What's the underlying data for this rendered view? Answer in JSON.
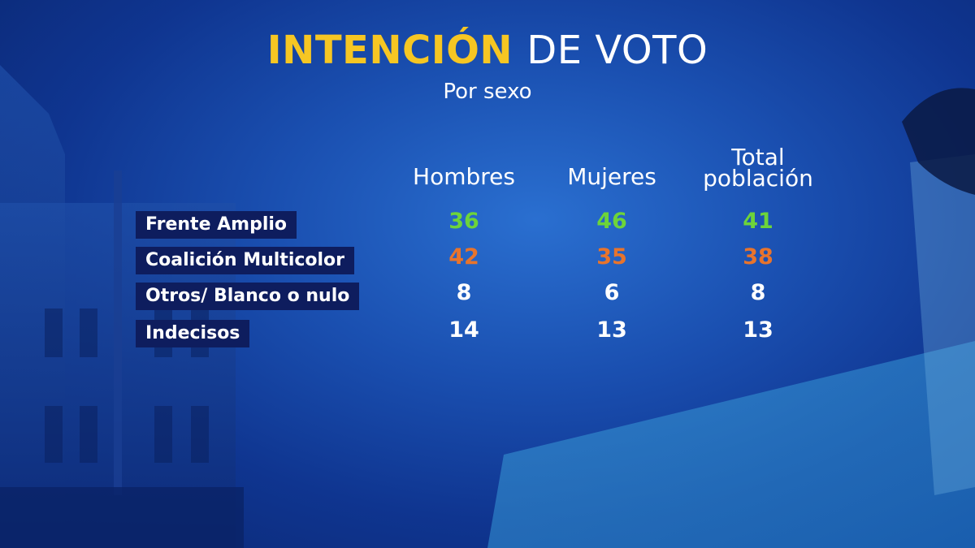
{
  "title": {
    "highlight": "INTENCIÓN",
    "rest": "DE VOTO"
  },
  "subtitle": "Por sexo",
  "colors": {
    "title_highlight": "#f6c623",
    "frente_amplio": "#6dd43a",
    "coalicion": "#e8742c",
    "default": "#ffffff",
    "label_bg": "#0e1d5e"
  },
  "chart_data": {
    "type": "table",
    "title": "INTENCIÓN DE VOTO",
    "subtitle": "Por sexo",
    "columns": [
      {
        "line1": "Hombres",
        "line2": ""
      },
      {
        "line1": "Mujeres",
        "line2": ""
      },
      {
        "line1": "Total",
        "line2": "población"
      }
    ],
    "rows": [
      {
        "label": "Frente Amplio",
        "values": [
          "36",
          "46",
          "41"
        ],
        "color": "#6dd43a"
      },
      {
        "label": "Coalición Multicolor",
        "values": [
          "42",
          "35",
          "38"
        ],
        "color": "#e8742c"
      },
      {
        "label": "Otros/ Blanco o nulo",
        "values": [
          "8",
          "6",
          "8"
        ],
        "color": "#ffffff"
      },
      {
        "label": "Indecisos",
        "values": [
          "14",
          "13",
          "13"
        ],
        "color": "#ffffff"
      }
    ]
  }
}
